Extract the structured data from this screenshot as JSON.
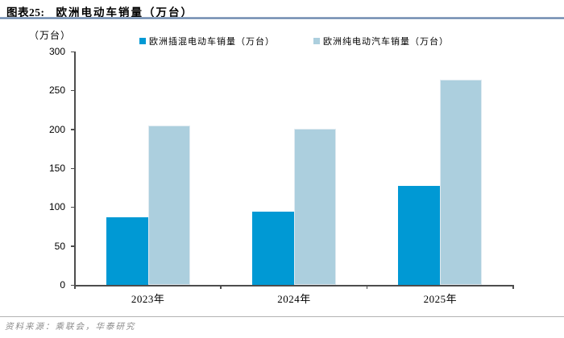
{
  "header": {
    "figure_label": "图表25:",
    "title": "欧洲电动车销量（万台）"
  },
  "chart_data": {
    "type": "bar",
    "title": "欧洲电动车销量（万台）",
    "unit_label": "（万台）",
    "categories": [
      "2023年",
      "2024年",
      "2025年"
    ],
    "series": [
      {
        "key": "phev",
        "name": "欧洲插混电动车销量（万台）",
        "color": "#0099D4",
        "values": [
          87,
          94,
          127
        ]
      },
      {
        "key": "bev",
        "name": "欧洲纯电动汽车销量（万台）",
        "color": "#ACCFDE",
        "values": [
          205,
          201,
          264
        ]
      }
    ],
    "xlabel": "",
    "ylabel": "（万台）",
    "ylim": [
      0,
      300
    ],
    "ytick_step": 50,
    "yticks": [
      0,
      50,
      100,
      150,
      200,
      250,
      300
    ],
    "grid": false,
    "legend_position": "top"
  },
  "footer": {
    "source": "资料来源：乘联会，华泰研究"
  },
  "colors": {
    "title_rule": "#51739E",
    "axis": "#4D4D4D",
    "source_text": "#8C8C8C",
    "phev_bar": "#0099D4",
    "bev_bar": "#ACCFDE"
  }
}
